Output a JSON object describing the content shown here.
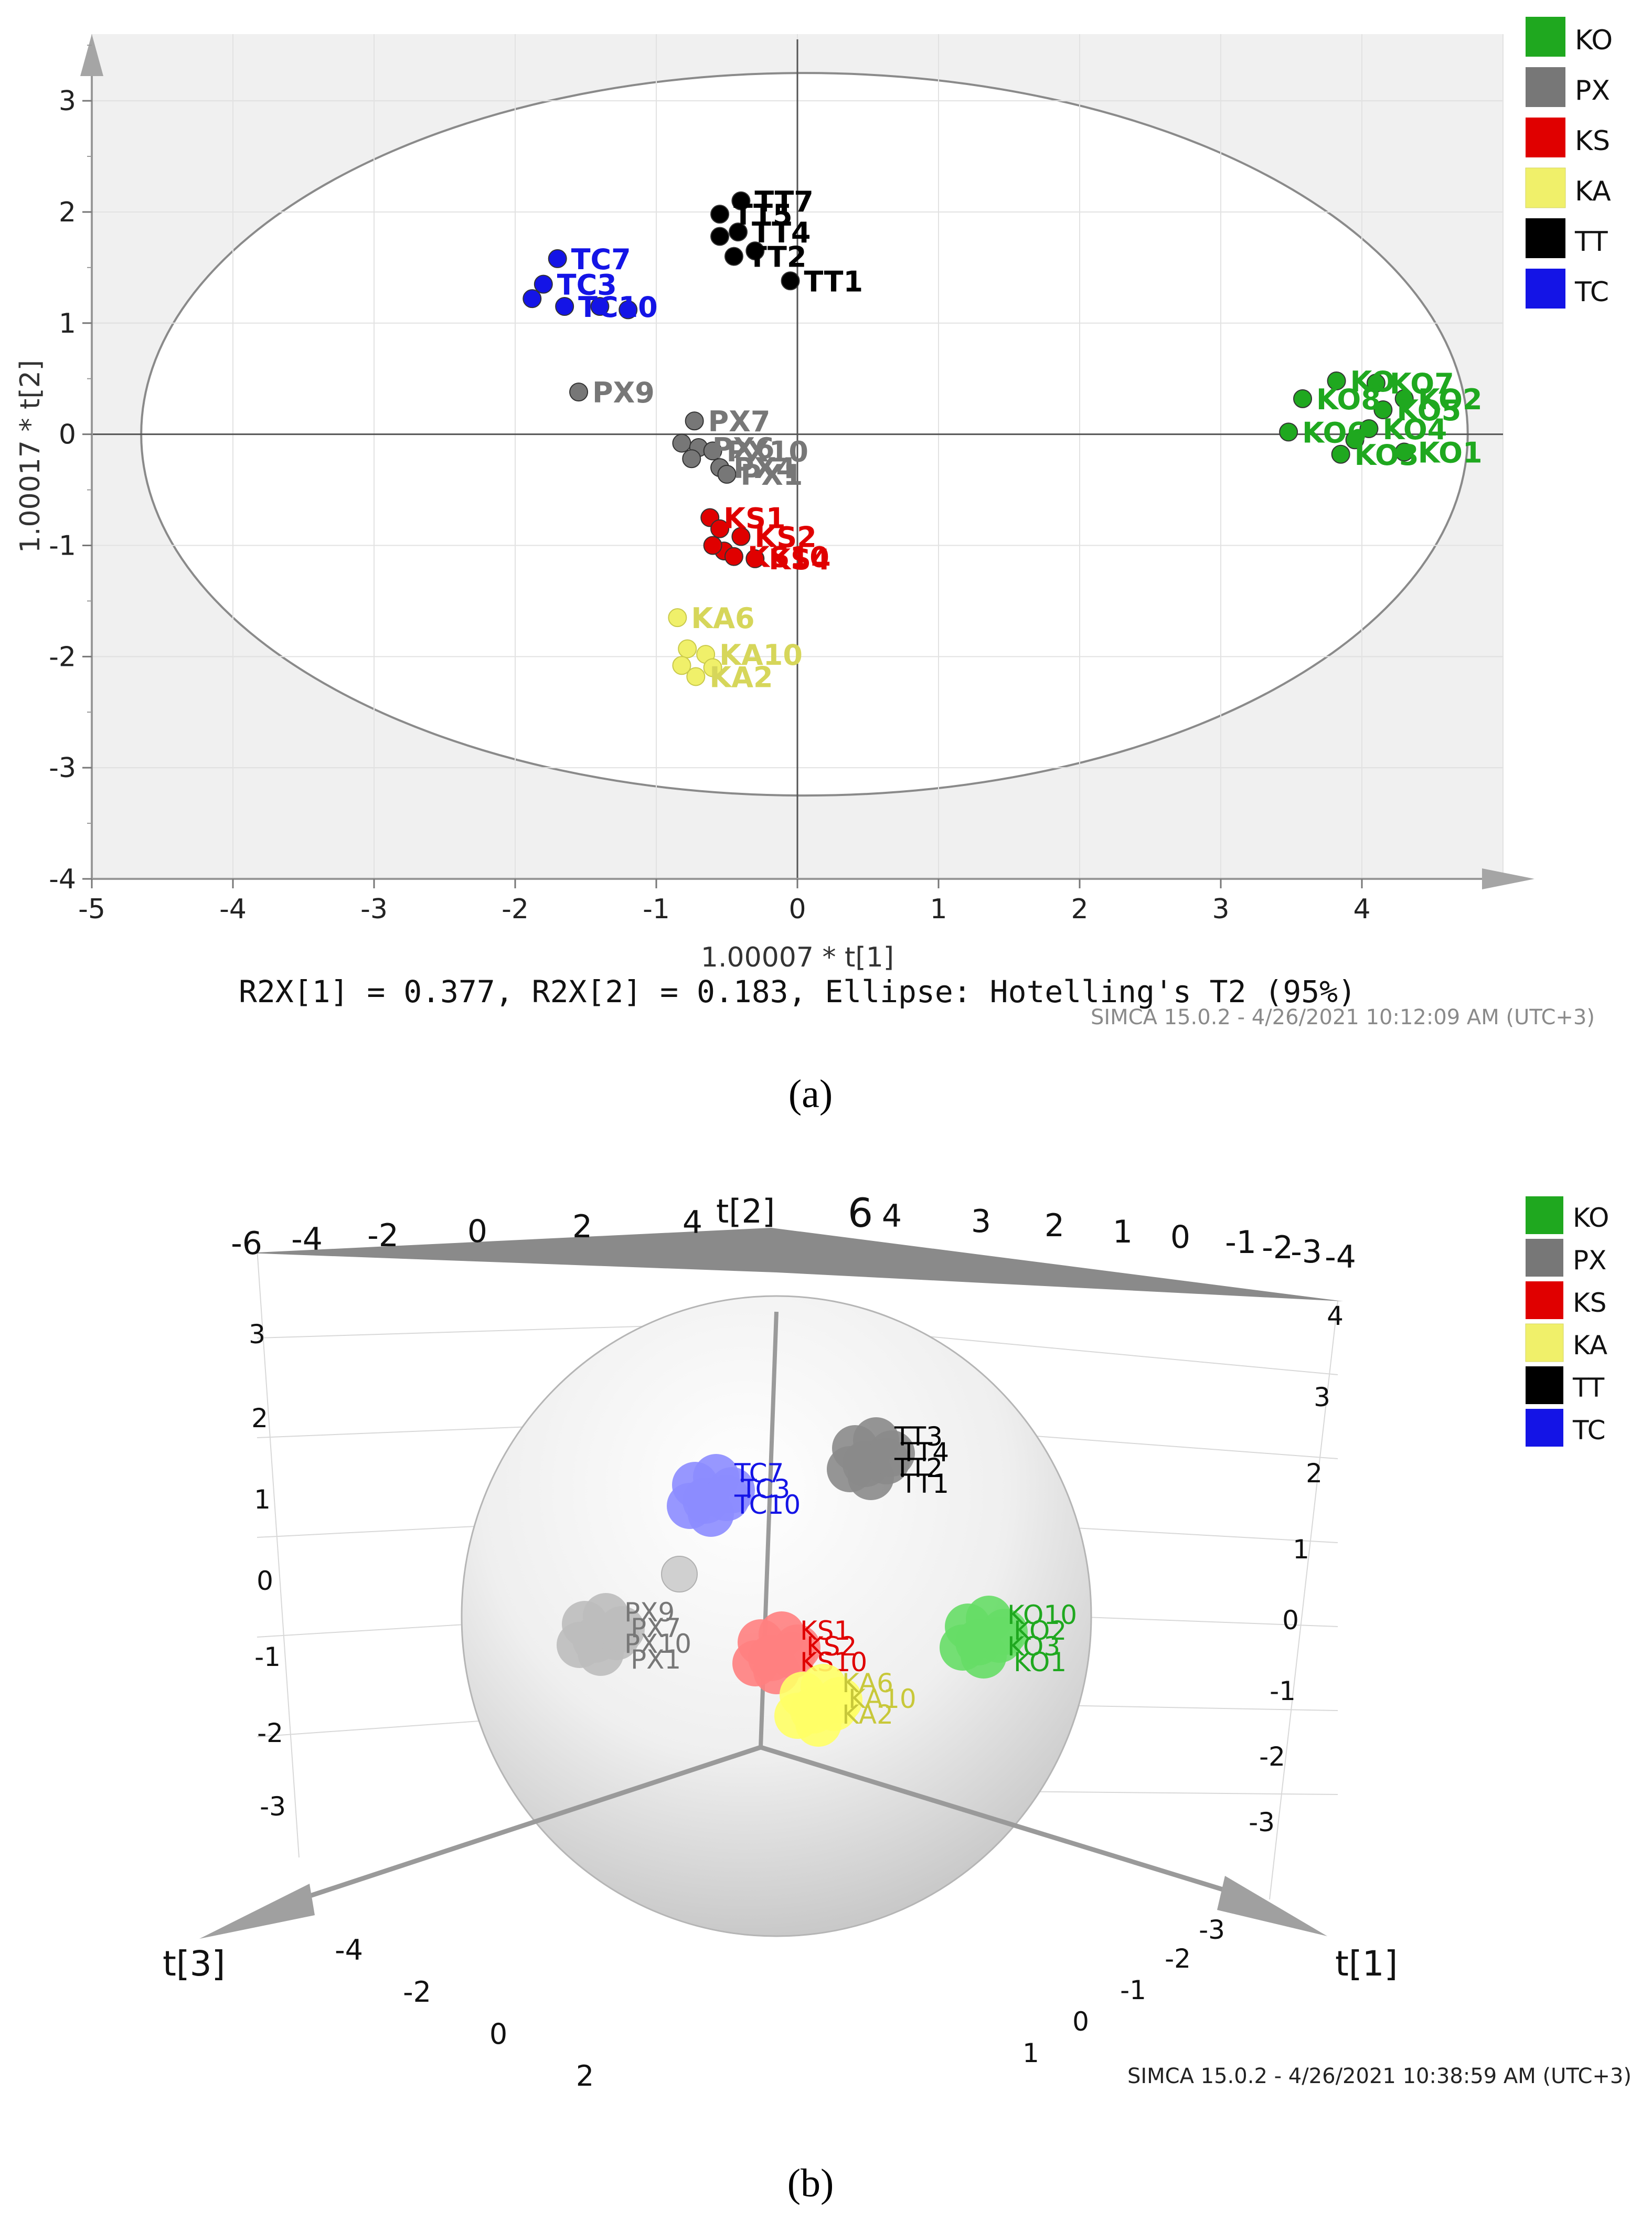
{
  "colors": {
    "KO": "#1fa81f",
    "PX": "#777777",
    "KS": "#e00000",
    "KA": "#f0f06a",
    "TT": "#000000",
    "TC": "#1414e6"
  },
  "legend": [
    {
      "label": "KO",
      "color": "#1fa81f"
    },
    {
      "label": "PX",
      "color": "#777777"
    },
    {
      "label": "KS",
      "color": "#e00000"
    },
    {
      "label": "KA",
      "color": "#f0f06a"
    },
    {
      "label": "TT",
      "color": "#000000"
    },
    {
      "label": "TC",
      "color": "#1414e6"
    }
  ],
  "captions": {
    "a": "(a)",
    "b": "(b)"
  },
  "chart_data": [
    {
      "type": "scatter",
      "panel": "a",
      "xlabel": "1.00007 * t[1]",
      "ylabel": "1.00017 * t[2]",
      "xlim": [
        -5,
        5
      ],
      "ylim": [
        -4,
        3.6
      ],
      "xticks": [
        -5,
        -4,
        -3,
        -2,
        -1,
        0,
        1,
        2,
        3,
        4
      ],
      "yticks": [
        3,
        2,
        1,
        0,
        -1,
        -2,
        -3,
        -4
      ],
      "footer": "R2X[1] = 0.377, R2X[2] = 0.183, Ellipse: Hotelling's T2 (95%)",
      "watermark": "SIMCA 15.0.2 - 4/26/2021 10:12:09 AM (UTC+3)",
      "ellipse": {
        "cx": 0.05,
        "cy": 0,
        "rx": 4.7,
        "ry": 3.25
      },
      "series": [
        {
          "name": "KO",
          "points": [
            {
              "x": 3.82,
              "y": 0.48,
              "label": "KO"
            },
            {
              "x": 4.1,
              "y": 0.46,
              "label": "KO7"
            },
            {
              "x": 3.58,
              "y": 0.32,
              "label": "KO8"
            },
            {
              "x": 4.3,
              "y": 0.32,
              "label": "KO2"
            },
            {
              "x": 4.15,
              "y": 0.22,
              "label": "KO5"
            },
            {
              "x": 3.48,
              "y": 0.02,
              "label": "KO6"
            },
            {
              "x": 4.05,
              "y": 0.05,
              "label": "KO4"
            },
            {
              "x": 3.85,
              "y": -0.18,
              "label": "KO3"
            },
            {
              "x": 4.3,
              "y": -0.16,
              "label": "KO1"
            },
            {
              "x": 3.95,
              "y": -0.05,
              "label": ""
            }
          ]
        },
        {
          "name": "PX",
          "points": [
            {
              "x": -1.55,
              "y": 0.38,
              "label": "PX9"
            },
            {
              "x": -0.73,
              "y": 0.12,
              "label": "PX7"
            },
            {
              "x": -0.82,
              "y": -0.08,
              "label": ""
            },
            {
              "x": -0.7,
              "y": -0.12,
              "label": "PX6"
            },
            {
              "x": -0.6,
              "y": -0.15,
              "label": "PX10"
            },
            {
              "x": -0.55,
              "y": -0.3,
              "label": "PX4"
            },
            {
              "x": -0.75,
              "y": -0.22,
              "label": ""
            },
            {
              "x": -0.5,
              "y": -0.36,
              "label": "PX1"
            }
          ]
        },
        {
          "name": "KS",
          "points": [
            {
              "x": -0.62,
              "y": -0.75,
              "label": "KS1"
            },
            {
              "x": -0.55,
              "y": -0.85,
              "label": ""
            },
            {
              "x": -0.4,
              "y": -0.92,
              "label": "KS2"
            },
            {
              "x": -0.52,
              "y": -1.05,
              "label": ""
            },
            {
              "x": -0.45,
              "y": -1.1,
              "label": "KS10"
            },
            {
              "x": -0.3,
              "y": -1.12,
              "label": "KS4"
            },
            {
              "x": -0.6,
              "y": -1.0,
              "label": ""
            }
          ]
        },
        {
          "name": "KA",
          "points": [
            {
              "x": -0.85,
              "y": -1.65,
              "label": "KA6"
            },
            {
              "x": -0.78,
              "y": -1.93,
              "label": ""
            },
            {
              "x": -0.65,
              "y": -1.98,
              "label": "KA10"
            },
            {
              "x": -0.82,
              "y": -2.08,
              "label": ""
            },
            {
              "x": -0.72,
              "y": -2.18,
              "label": "KA2"
            },
            {
              "x": -0.6,
              "y": -2.1,
              "label": ""
            }
          ]
        },
        {
          "name": "TT",
          "points": [
            {
              "x": -0.4,
              "y": 2.1,
              "label": "TT7"
            },
            {
              "x": -0.55,
              "y": 1.98,
              "label": "TT5"
            },
            {
              "x": -0.55,
              "y": 1.78,
              "label": ""
            },
            {
              "x": -0.42,
              "y": 1.82,
              "label": "TT4"
            },
            {
              "x": -0.45,
              "y": 1.6,
              "label": "TT2"
            },
            {
              "x": -0.3,
              "y": 1.65,
              "label": ""
            },
            {
              "x": -0.05,
              "y": 1.38,
              "label": "TT1"
            }
          ]
        },
        {
          "name": "TC",
          "points": [
            {
              "x": -1.7,
              "y": 1.58,
              "label": "TC7"
            },
            {
              "x": -1.8,
              "y": 1.35,
              "label": "TC3"
            },
            {
              "x": -1.88,
              "y": 1.22,
              "label": ""
            },
            {
              "x": -1.65,
              "y": 1.15,
              "label": "TC10"
            },
            {
              "x": -1.4,
              "y": 1.15,
              "label": ""
            },
            {
              "x": -1.2,
              "y": 1.12,
              "label": ""
            }
          ]
        }
      ]
    },
    {
      "type": "scatter-3d",
      "panel": "b",
      "axes": {
        "x": "t[1]",
        "y": "t[2]",
        "z": "t[3]"
      },
      "top_ticks": [
        "-6",
        "-4",
        "-2",
        "0",
        "2",
        "4",
        "6",
        "4",
        "3",
        "2",
        "1",
        "0",
        "-1",
        "-2",
        "-3",
        "-4"
      ],
      "left_ticks": [
        "3",
        "2",
        "1",
        "0",
        "-1",
        "-2",
        "-3"
      ],
      "right_ticks": [
        "4",
        "3",
        "2",
        "1",
        "0",
        "-1",
        "-2",
        "-3"
      ],
      "front_left_ticks": [
        "-4",
        "-2",
        "0",
        "2"
      ],
      "front_right_ticks": [
        "-3",
        "-2",
        "-1",
        "0",
        "1"
      ],
      "watermark": "SIMCA 15.0.2 - 4/26/2021 10:38:59 AM (UTC+3)",
      "clusters": [
        {
          "name": "TT",
          "labels": [
            "TT3",
            "TT4",
            "TT2",
            "TT1"
          ]
        },
        {
          "name": "TC",
          "labels": [
            "TC7",
            "TC3",
            "TC10"
          ]
        },
        {
          "name": "PX",
          "labels": [
            "PX9",
            "PX7",
            "PX10",
            "PX1"
          ]
        },
        {
          "name": "KS",
          "labels": [
            "KS1",
            "KS2",
            "KS10"
          ]
        },
        {
          "name": "KA",
          "labels": [
            "KA6",
            "KA10",
            "KA2"
          ]
        },
        {
          "name": "KO",
          "labels": [
            "KO10",
            "KO2",
            "KO3",
            "KO1"
          ]
        }
      ]
    }
  ]
}
